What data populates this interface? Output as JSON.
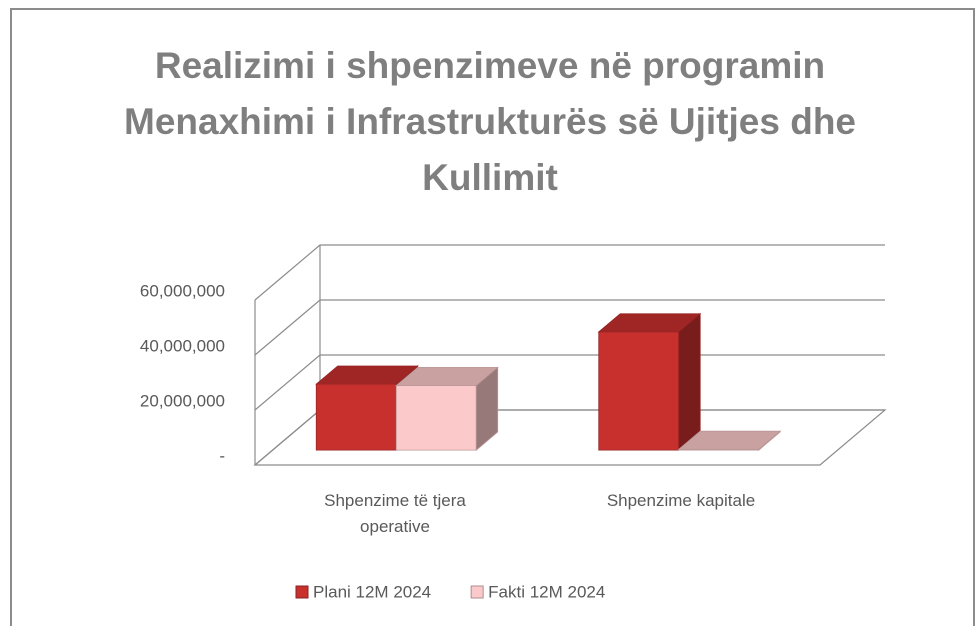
{
  "chart_data": {
    "type": "bar3d",
    "title": "Realizimi i shpenzimeve në programin Menaxhimi i Infrastrukturës së Ujitjes dhe Kullimit",
    "categories": [
      "Shpenzime të tjera operative",
      "Shpenzime kapitale"
    ],
    "series": [
      {
        "name": "Plani 12M 2024",
        "color": "#c8302e",
        "values": [
          24000000,
          43000000
        ]
      },
      {
        "name": "Fakti 12M 2024",
        "color": "#fbc9c9",
        "values": [
          23500000,
          300000
        ]
      }
    ],
    "ylim": [
      0,
      60000000
    ],
    "yticks": [
      {
        "value": 0,
        "label": "-"
      },
      {
        "value": 20000000,
        "label": "20,000,000"
      },
      {
        "value": 40000000,
        "label": "40,000,000"
      },
      {
        "value": 60000000,
        "label": "60,000,000"
      }
    ],
    "grid": true,
    "legend": "bottom"
  }
}
